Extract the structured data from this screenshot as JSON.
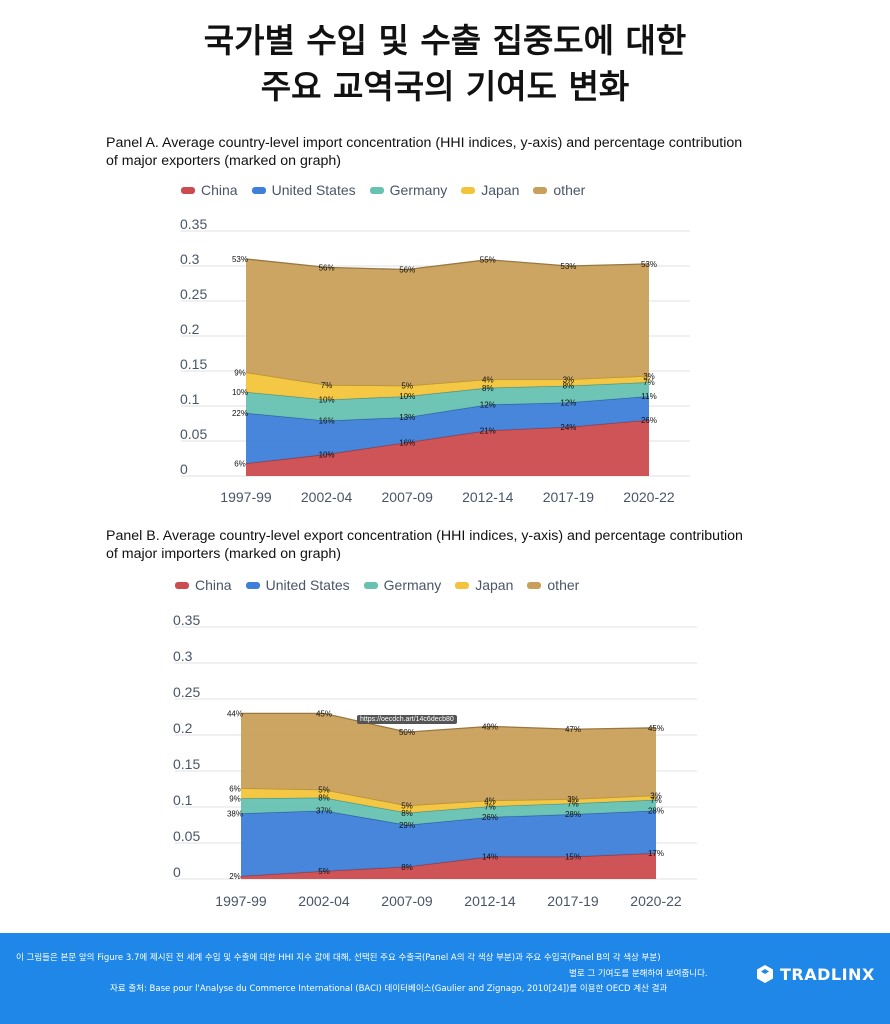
{
  "page": {
    "title_line1": "국가별 수입 및 수출 집중도에 대한",
    "title_line2": "주요 교역국의 기여도 변화"
  },
  "colors": {
    "China": "#cc4b4e",
    "United States": "#3d7fd9",
    "Germany": "#67c2b1",
    "Japan": "#f3c43b",
    "other": "#c9a05b"
  },
  "legend": [
    "China",
    "United States",
    "Germany",
    "Japan",
    "other"
  ],
  "chart_data": [
    {
      "type": "area",
      "stacked": true,
      "title": "Panel A. Average country-level import concentration (HHI indices, y-axis) and percentage contribution of major exporters (marked on graph)",
      "categories": [
        "1997-99",
        "2002-04",
        "2007-09",
        "2012-14",
        "2017-19",
        "2020-22"
      ],
      "yticks": [
        "0",
        "0.05",
        "0.1",
        "0.15",
        "0.2",
        "0.25",
        "0.3",
        "0.35"
      ],
      "ylim": [
        0,
        0.35
      ],
      "legend_position": "top",
      "series": [
        {
          "name": "China",
          "values": [
            0.018,
            0.031,
            0.048,
            0.065,
            0.07,
            0.08
          ],
          "labels": [
            "6%",
            "10%",
            "16%",
            "21%",
            "24%",
            "26%"
          ]
        },
        {
          "name": "United States",
          "values": [
            0.072,
            0.048,
            0.036,
            0.037,
            0.035,
            0.034
          ],
          "labels": [
            "22%",
            "16%",
            "13%",
            "12%",
            "12%",
            "11%"
          ]
        },
        {
          "name": "Germany",
          "values": [
            0.03,
            0.03,
            0.03,
            0.024,
            0.024,
            0.02
          ],
          "labels": [
            "10%",
            "10%",
            "10%",
            "8%",
            "8%",
            "7%"
          ]
        },
        {
          "name": "Japan",
          "values": [
            0.028,
            0.021,
            0.015,
            0.012,
            0.009,
            0.009
          ],
          "labels": [
            "9%",
            "7%",
            "5%",
            "4%",
            "3%",
            "3%"
          ]
        },
        {
          "name": "other",
          "values": [
            0.162,
            0.168,
            0.166,
            0.171,
            0.162,
            0.16
          ],
          "labels": [
            "53%",
            "56%",
            "56%",
            "55%",
            "53%",
            "53%"
          ]
        }
      ]
    },
    {
      "type": "area",
      "stacked": true,
      "title": "Panel B. Average country-level export concentration (HHI indices, y-axis) and percentage contribution of major importers (marked on graph)",
      "categories": [
        "1997-99",
        "2002-04",
        "2007-09",
        "2012-14",
        "2017-19",
        "2020-22"
      ],
      "yticks": [
        "0",
        "0.05",
        "0.1",
        "0.15",
        "0.2",
        "0.25",
        "0.3",
        "0.35"
      ],
      "ylim": [
        0,
        0.35
      ],
      "legend_position": "top",
      "tooltip": "https://oecdch.art/14c6decb80",
      "series": [
        {
          "name": "China",
          "values": [
            0.004,
            0.011,
            0.017,
            0.031,
            0.031,
            0.036
          ],
          "labels": [
            "2%",
            "5%",
            "8%",
            "14%",
            "15%",
            "17%"
          ]
        },
        {
          "name": "United States",
          "values": [
            0.087,
            0.084,
            0.058,
            0.055,
            0.059,
            0.059
          ],
          "labels": [
            "38%",
            "37%",
            "29%",
            "26%",
            "28%",
            "28%"
          ]
        },
        {
          "name": "Germany",
          "values": [
            0.021,
            0.018,
            0.017,
            0.015,
            0.015,
            0.015
          ],
          "labels": [
            "9%",
            "8%",
            "8%",
            "7%",
            "7%",
            "7%"
          ]
        },
        {
          "name": "Japan",
          "values": [
            0.014,
            0.011,
            0.01,
            0.008,
            0.006,
            0.006
          ],
          "labels": [
            "6%",
            "5%",
            "5%",
            "4%",
            "3%",
            "3%"
          ]
        },
        {
          "name": "other",
          "values": [
            0.104,
            0.106,
            0.102,
            0.103,
            0.097,
            0.094
          ],
          "labels": [
            "44%",
            "45%",
            "50%",
            "49%",
            "47%",
            "45%"
          ]
        }
      ]
    }
  ],
  "footer": {
    "line1": "이 그림들은 본문 앞의 Figure 3.7에 제시된 전 세계 수입 및 수출에 대한 HHI 지수 값에 대해, 선택된 주요 수출국(Panel A의 각 색상 부분)과 주요 수입국(Panel B의 각 색상 부분)",
    "line2": "별로 그 기여도를 분해하여 보여줍니다.",
    "line3": "자료 출처: Base pour l'Analyse du Commerce International (BACI) 데이터베이스(Gaulier and Zignago, 2010[24])를 이용한 OECD 계산 결과",
    "logo": "TRADLINX",
    "logo_icon": "tradlinx-logo-icon"
  }
}
